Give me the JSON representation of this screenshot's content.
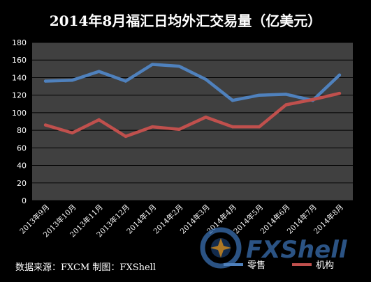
{
  "chart_data": {
    "type": "line",
    "title": "2014年8月福汇日均外汇交易量（亿美元）",
    "categories": [
      "2013年9月",
      "2013年10月",
      "2013年11月",
      "2013年12月",
      "2014年1月",
      "2014年2月",
      "2014年3月",
      "2014年4月",
      "2014年5月",
      "2014年6月",
      "2014年7月",
      "2014年8月"
    ],
    "series": [
      {
        "name": "零售",
        "color": "#4f81bd",
        "values": [
          136,
          137,
          147,
          136,
          155,
          153,
          138,
          114,
          120,
          121,
          114,
          143
        ]
      },
      {
        "name": "机构",
        "color": "#c0504d",
        "values": [
          86,
          77,
          92,
          73,
          84,
          81,
          95,
          84,
          84,
          109,
          115,
          122
        ]
      }
    ],
    "ylim": [
      0,
      180
    ],
    "yticks": [
      0,
      20,
      40,
      60,
      80,
      100,
      120,
      140,
      160,
      180
    ],
    "grid": true,
    "legend": "bottom-right",
    "plot_background": "#404040"
  },
  "footer": {
    "source": "数据来源：FXCM   制图：FXShell"
  },
  "watermark": {
    "text": "FXShell",
    "icon": "fxshell-logo-icon"
  }
}
